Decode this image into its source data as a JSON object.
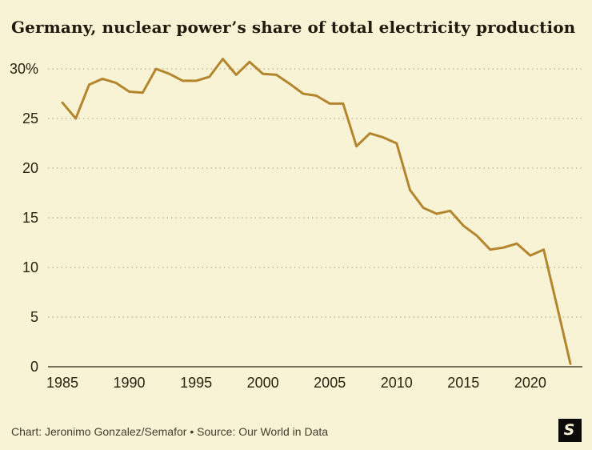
{
  "footer": {
    "credit": "Chart: Jeronimo Gonzalez/Semafor • Source: Our World in Data",
    "logo_letter": "S"
  },
  "colors": {
    "background": "#f9f3d6",
    "line": "#b3862e",
    "grid_dotted": "#b9b294",
    "axis_baseline": "#474130",
    "text_dark": "#29230f",
    "footer_text": "#413d2c",
    "logo_bg": "#0b0b09"
  },
  "chart_data": {
    "type": "line",
    "title": "Germany, nuclear power’s share of total electricity production",
    "xlabel": "",
    "ylabel": "",
    "ylim": [
      0,
      31.5
    ],
    "xlim": [
      1984.8,
      2023.5
    ],
    "grid": "dotted horizontal gridlines, solid baseline at 0",
    "legend": "none",
    "x": [
      1985,
      1986,
      1987,
      1988,
      1989,
      1990,
      1991,
      1992,
      1993,
      1994,
      1995,
      1996,
      1997,
      1998,
      1999,
      2000,
      2001,
      2002,
      2003,
      2004,
      2005,
      2006,
      2007,
      2008,
      2009,
      2010,
      2011,
      2012,
      2013,
      2014,
      2015,
      2016,
      2017,
      2018,
      2019,
      2020,
      2021,
      2022,
      2023
    ],
    "series": [
      {
        "name": "Nuclear share of total electricity production (%)",
        "values": [
          26.6,
          25.0,
          28.4,
          29.0,
          28.6,
          27.7,
          27.6,
          30.0,
          29.5,
          28.8,
          28.8,
          29.2,
          31.0,
          29.4,
          30.7,
          29.5,
          29.4,
          28.5,
          27.5,
          27.3,
          26.5,
          26.5,
          22.2,
          23.5,
          23.1,
          22.5,
          17.8,
          16.0,
          15.4,
          15.7,
          14.2,
          13.2,
          11.8,
          12.0,
          12.4,
          11.2,
          11.8,
          6.1,
          0.3
        ]
      }
    ],
    "xticks": [
      1985,
      1990,
      1995,
      2000,
      2005,
      2010,
      2015,
      2020
    ],
    "xtick_labels": [
      "1985",
      "1990",
      "1995",
      "2000",
      "2005",
      "2010",
      "2015",
      "2020"
    ],
    "yticks": [
      0,
      5,
      10,
      15,
      20,
      25,
      30
    ],
    "ytick_labels": [
      "0",
      "5",
      "10",
      "15",
      "20",
      "25",
      "30%"
    ]
  }
}
